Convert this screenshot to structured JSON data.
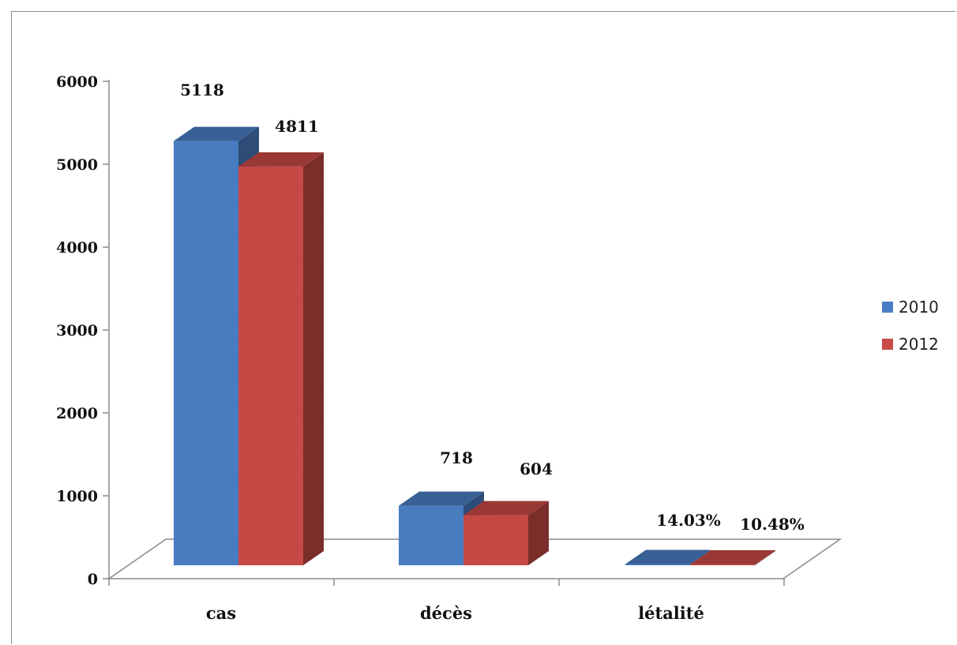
{
  "chart_data": {
    "type": "bar",
    "categories": [
      "cas",
      "décès",
      "létalité"
    ],
    "series": [
      {
        "name": "2010",
        "values": [
          5118,
          718,
          14.03
        ],
        "labels": [
          "5118",
          "718",
          "14.03%"
        ],
        "color": "#4a7ec4"
      },
      {
        "name": "2012",
        "values": [
          4811,
          604,
          10.48
        ],
        "labels": [
          "4811",
          "604",
          "10.48%"
        ],
        "color": "#c94a46"
      }
    ],
    "y_ticks": [
      "0",
      "1000",
      "2000",
      "3000",
      "4000",
      "5000",
      "6000"
    ],
    "ylim": [
      0,
      6000
    ],
    "legend_position": "right",
    "grid": false,
    "style": "3d-clustered-column"
  }
}
